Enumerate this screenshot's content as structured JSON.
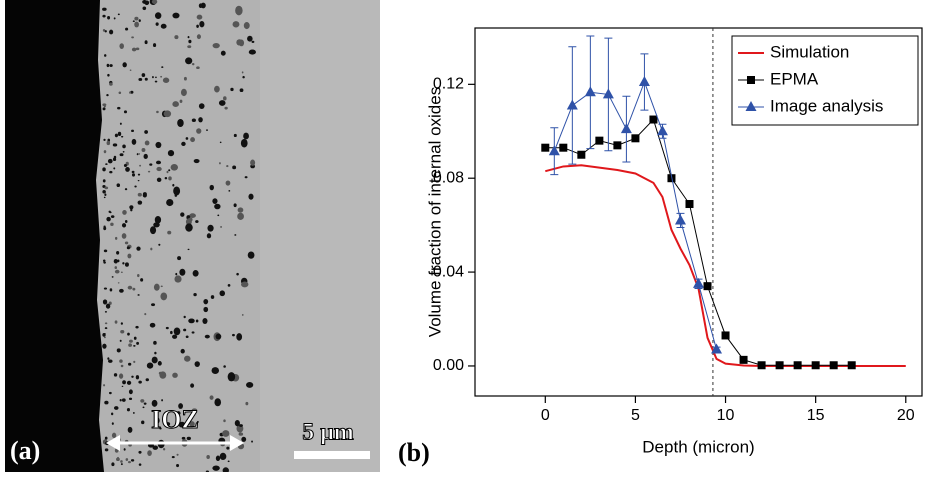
{
  "panel_a": {
    "label": "(a)",
    "annotation": "IOZ",
    "scale_bar": "5 μm"
  },
  "panel_b": {
    "label": "(b)"
  },
  "chart_data": {
    "type": "line",
    "x_label": "Depth (micron)",
    "y_label": "Volume fraction of internal oxides",
    "xlim": [
      -3.9,
      20.9
    ],
    "ylim": [
      -0.0128,
      0.144
    ],
    "xticks": [
      0,
      5,
      10,
      15,
      20
    ],
    "yticks": [
      {
        "value": 0,
        "label": "0.00"
      },
      {
        "value": 0.04,
        "label": "0.04"
      },
      {
        "value": 0.08,
        "label": "0.08"
      },
      {
        "value": 0.12,
        "label": "0.12"
      }
    ],
    "vline": 9.3,
    "legend": "upper right",
    "series": [
      {
        "name": "Simulation",
        "color": "#e0181c",
        "marker": "none",
        "x": [
          0,
          1,
          2,
          3,
          4,
          5,
          6,
          6.5,
          7,
          7.5,
          8,
          8.5,
          9,
          9.5,
          10,
          11,
          12,
          15,
          20
        ],
        "values": [
          0.083,
          0.085,
          0.0855,
          0.0845,
          0.0835,
          0.082,
          0.078,
          0.072,
          0.058,
          0.05,
          0.043,
          0.033,
          0.012,
          0.003,
          0.001,
          0.0002,
          0,
          0,
          0
        ]
      },
      {
        "name": "EPMA",
        "color": "#000000",
        "marker": "square",
        "x": [
          0,
          1,
          2,
          3,
          4,
          5,
          6,
          7,
          8,
          9,
          10,
          11,
          12,
          13,
          14,
          15,
          16,
          17
        ],
        "values": [
          0.093,
          0.093,
          0.09,
          0.096,
          0.094,
          0.097,
          0.105,
          0.08,
          0.069,
          0.034,
          0.013,
          0.0026,
          0.0003,
          0.0003,
          0.0003,
          0.0003,
          0.0003,
          0.0003
        ]
      },
      {
        "name": "Image analysis",
        "color": "#2f52a8",
        "marker": "triangle",
        "x": [
          0.5,
          1.5,
          2.5,
          3.5,
          4.5,
          5.5,
          6.5,
          7.5,
          8.5,
          9.5
        ],
        "values": [
          0.0915,
          0.111,
          0.1166,
          0.1157,
          0.1009,
          0.121,
          0.1,
          0.062,
          0.035,
          0.007
        ],
        "errors": [
          0.01,
          0.025,
          0.024,
          0.024,
          0.014,
          0.012,
          0.003,
          0.003,
          0.002,
          0.001
        ]
      }
    ]
  }
}
